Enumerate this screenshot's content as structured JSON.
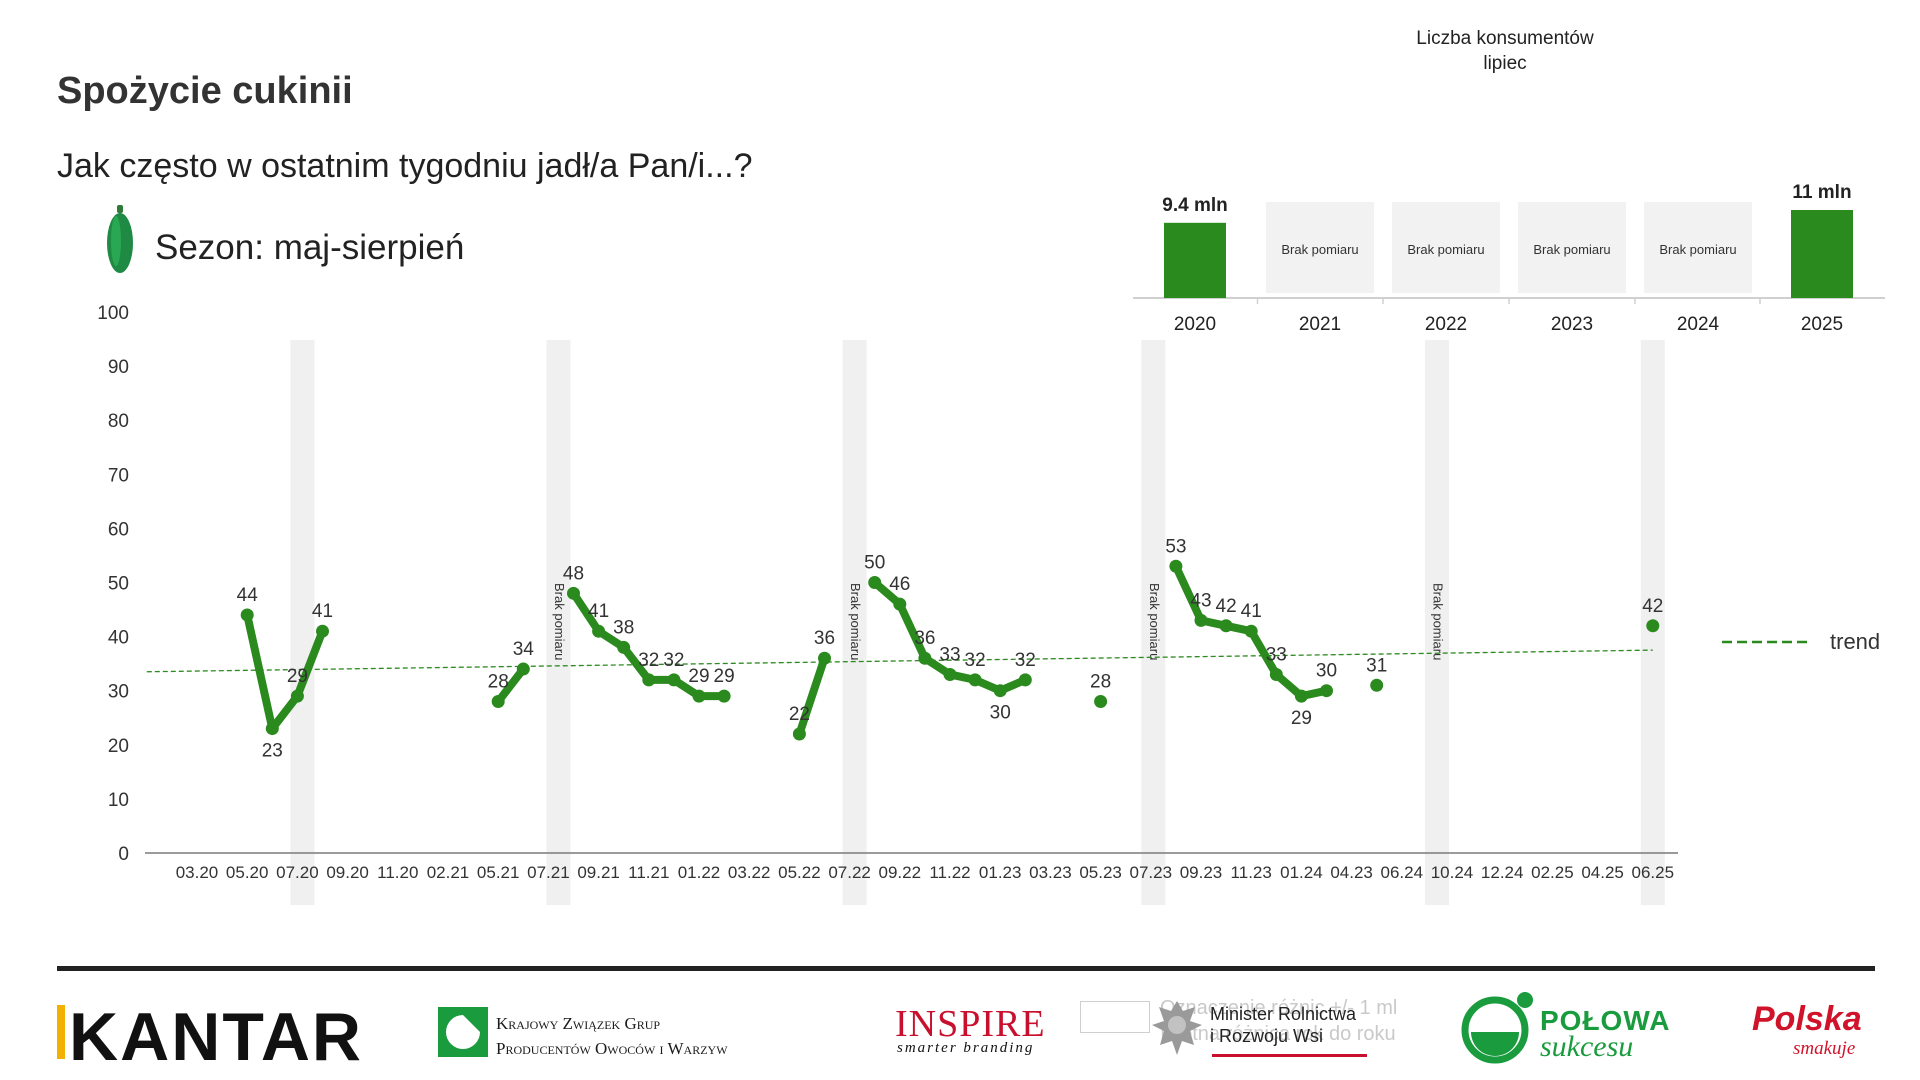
{
  "header": {
    "title": "Spożycie cukinii",
    "subtitle": "Jak często w ostatnim tygodniu jadł/a Pan/i...?",
    "season": "Sezon: maj-sierpień"
  },
  "yearly_panel": {
    "header_line1": "Liczba konsumentów",
    "header_line2": "lipiec"
  },
  "chart_data": [
    {
      "type": "line",
      "ylim": [
        0,
        100
      ],
      "yticks": [
        0,
        10,
        20,
        30,
        40,
        50,
        60,
        70,
        80,
        90,
        100
      ],
      "xticks": [
        "03.20",
        "05.20",
        "07.20",
        "09.20",
        "11.20",
        "02.21",
        "05.21",
        "07.21",
        "09.21",
        "11.21",
        "01.22",
        "03.22",
        "05.22",
        "07.22",
        "09.22",
        "11.22",
        "01.23",
        "03.23",
        "05.23",
        "07.23",
        "09.23",
        "11.23",
        "01.24",
        "04.23",
        "06.24",
        "10.24",
        "12.24",
        "02.25",
        "04.25",
        "06.25"
      ],
      "series_color": "#2b8a1e",
      "segments": [
        [
          {
            "x": 1.0,
            "y": 44
          },
          {
            "x": 1.5,
            "y": 23
          },
          {
            "x": 2.0,
            "y": 29
          },
          {
            "x": 2.5,
            "y": 41
          }
        ],
        [
          {
            "x": 6.0,
            "y": 28
          },
          {
            "x": 6.5,
            "y": 34
          }
        ],
        [
          {
            "x": 7.5,
            "y": 48
          },
          {
            "x": 8.0,
            "y": 41
          },
          {
            "x": 8.5,
            "y": 38
          },
          {
            "x": 9.0,
            "y": 32
          },
          {
            "x": 9.5,
            "y": 32
          },
          {
            "x": 10.0,
            "y": 29
          },
          {
            "x": 10.5,
            "y": 29
          }
        ],
        [
          {
            "x": 12.0,
            "y": 22
          },
          {
            "x": 12.5,
            "y": 36
          }
        ],
        [
          {
            "x": 13.5,
            "y": 50
          },
          {
            "x": 14.0,
            "y": 46
          },
          {
            "x": 14.5,
            "y": 36
          },
          {
            "x": 15.0,
            "y": 33
          },
          {
            "x": 15.5,
            "y": 32
          },
          {
            "x": 16.0,
            "y": 30
          },
          {
            "x": 16.5,
            "y": 32
          }
        ],
        [
          {
            "x": 18.0,
            "y": 28
          }
        ],
        [
          {
            "x": 19.5,
            "y": 53
          },
          {
            "x": 20.0,
            "y": 43
          },
          {
            "x": 20.5,
            "y": 42
          },
          {
            "x": 21.0,
            "y": 41
          },
          {
            "x": 21.5,
            "y": 33
          },
          {
            "x": 22.0,
            "y": 29
          },
          {
            "x": 22.5,
            "y": 30
          }
        ],
        [
          {
            "x": 23.5,
            "y": 31
          }
        ],
        [
          {
            "x": 29.0,
            "y": 42
          }
        ]
      ],
      "gap_bands": [
        {
          "x": 2.1,
          "label": ""
        },
        {
          "x": 7.2,
          "label": "Brak pomiaru"
        },
        {
          "x": 13.1,
          "label": "Brak pomiaru"
        },
        {
          "x": 19.05,
          "label": "Brak pomiaru"
        },
        {
          "x": 24.7,
          "label": "Brak pomiaru"
        },
        {
          "x": 29.0,
          "label": ""
        }
      ],
      "trend": {
        "label": "trend",
        "start": {
          "x": -1.0,
          "y": 33.5
        },
        "end": {
          "x": 29.0,
          "y": 37.5
        },
        "color": "#2b8a1e"
      }
    },
    {
      "type": "bar",
      "categories": [
        "2020",
        "2021",
        "2022",
        "2023",
        "2024",
        "2025"
      ],
      "values": [
        9.4,
        null,
        null,
        null,
        null,
        11
      ],
      "value_labels": [
        "9.4 mln",
        "Brak pomiaru",
        "Brak pomiaru",
        "Brak pomiaru",
        "Brak pomiaru",
        "11 mln"
      ],
      "bar_color": "#2b8a1e",
      "placeholder_color": "#f2f2f2"
    }
  ],
  "footer": {
    "kantar": "KANTAR",
    "kzg_line1": "Krajowy Związek Grup",
    "kzg_line2": "Producentów Owoców i Warzyw",
    "inspire": "INSPIRE",
    "inspire_sub": "smarter branding",
    "note_line1": "Oznaczenie różnic +/- 1 ml",
    "note_line2": "Istotna różnica rok do roku",
    "ministry_line1": "Minister Rolnictwa",
    "ministry_line2": "i Rozwoju Wsi",
    "polowa_line1": "POŁOWA",
    "polowa_line2": "sukcesu",
    "polska_line1": "Polska",
    "polska_line2": "smakuje"
  },
  "colors": {
    "accent_green": "#2b8a1e",
    "band_gray": "#f0f0f0",
    "red": "#c8102e"
  }
}
